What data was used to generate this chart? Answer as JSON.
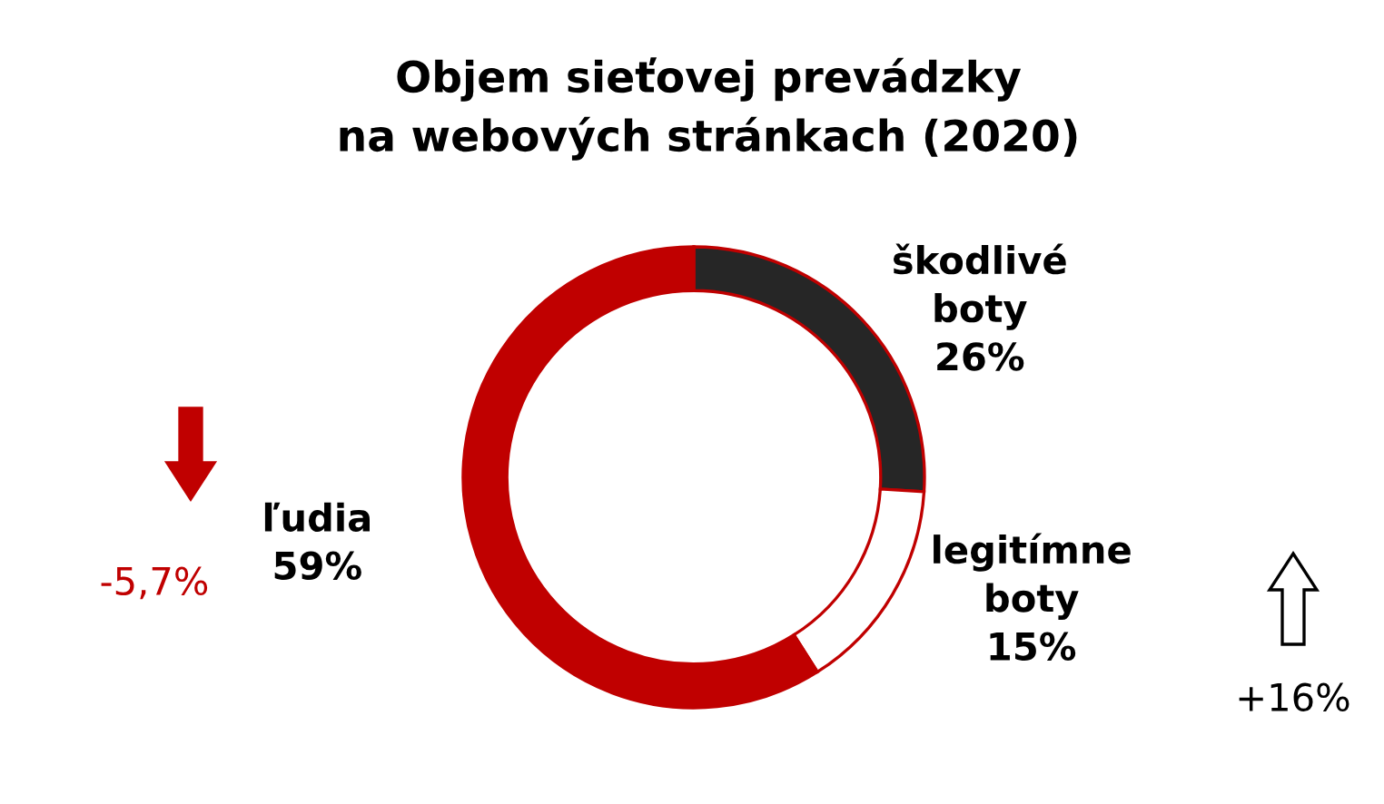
{
  "chart_data": {
    "type": "donut",
    "title": "Objem sieťovej prevádzky\nna webových stránkach (2020)",
    "categories": [
      "škodlivé boty",
      "legitímne boty",
      "ľudia"
    ],
    "values": [
      26,
      15,
      59
    ],
    "colors": [
      "#262626",
      "#ffffff",
      "#c00000"
    ],
    "value_labels": [
      "26%",
      "15%",
      "59%"
    ],
    "legend": false,
    "annotations": [
      "-5,7%",
      "+16%"
    ]
  }
}
